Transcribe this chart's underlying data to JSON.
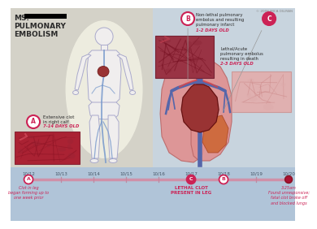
{
  "title_line1": "MS.",
  "title_line2": "PULMONARY",
  "title_line3": "EMBOLISM",
  "bg_left": "#d4d2c8",
  "bg_right": "#c8d4de",
  "bg_timeline": "#b0c4d8",
  "label_A_circle": "#cc2255",
  "label_B_circle": "#cc2255",
  "label_C_circle": "#cc2255",
  "dates": [
    "10/12",
    "10/13",
    "10/14",
    "10/15",
    "10/16",
    "10/17",
    "10/18",
    "10/19",
    "10/20"
  ],
  "event_A_text": "Clot in leg\nbegan forming up to\none week prior",
  "event_C_text": "LETHAL CLOT\nPRESENT IN LEG",
  "event_D_text": "3:25am\nFound unresponsive;\nfatal clot broke off\nand blocked lungs",
  "label_A_main": "Extensive clot\nin right calf",
  "label_A_age": "7-14 DAYS OLD",
  "label_B_main": "Non-lethal pulmonary\nembolus and resulting\npulmonary infarct",
  "label_B_age": "1-2 DAYS OLD",
  "label_C_main": "Lethal/Acute\npulmonary embolus\nresulting in death",
  "label_C_age": "2-3 DAYS OLD",
  "copyright": "© 2008 MICA DILIRAN",
  "text_color_pink": "#cc2255",
  "text_color_dark": "#2a2a2a",
  "text_color_gray": "#555555",
  "text_color_date": "#445566",
  "timeline_line_color": "#d090a8",
  "body_fill": "#f0eeee",
  "body_edge": "#aaaacc",
  "vein_color": "#7799cc",
  "artery_color": "#cc4444",
  "lung_fill": "#e09090",
  "lung_edge": "#bb6666",
  "heart_fill": "#993333",
  "heart_edge": "#661111",
  "vessel_color": "#5566aa",
  "infarct_fill": "#cc6633",
  "tissue_A_fill": "#aa2233",
  "tissue_B_fill": "#993344",
  "tissue_C_fill": "#e8b0b0",
  "glow_color": "#fffff0"
}
